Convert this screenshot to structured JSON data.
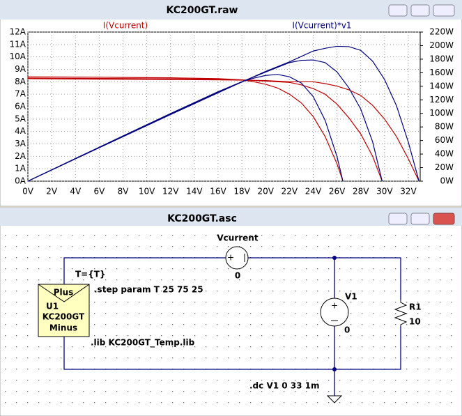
{
  "windows": {
    "plot_title": "KC200GT.raw",
    "schematic_title": "KC200GT.asc"
  },
  "chart_data": {
    "type": "line",
    "xlim": [
      0,
      33
    ],
    "xticks": [
      {
        "value": 0,
        "label": "0V"
      },
      {
        "value": 2,
        "label": "2V"
      },
      {
        "value": 4,
        "label": "4V"
      },
      {
        "value": 6,
        "label": "6V"
      },
      {
        "value": 8,
        "label": "8V"
      },
      {
        "value": 10,
        "label": "10V"
      },
      {
        "value": 12,
        "label": "12V"
      },
      {
        "value": 14,
        "label": "14V"
      },
      {
        "value": 16,
        "label": "16V"
      },
      {
        "value": 18,
        "label": "18V"
      },
      {
        "value": 20,
        "label": "20V"
      },
      {
        "value": 22,
        "label": "22V"
      },
      {
        "value": 24,
        "label": "24V"
      },
      {
        "value": 26,
        "label": "26V"
      },
      {
        "value": 28,
        "label": "28V"
      },
      {
        "value": 30,
        "label": "30V"
      },
      {
        "value": 32,
        "label": "32V"
      }
    ],
    "ylim": [
      0,
      12
    ],
    "yticks": [
      {
        "value": 0,
        "label": "0A"
      },
      {
        "value": 1,
        "label": "1A"
      },
      {
        "value": 2,
        "label": "2A"
      },
      {
        "value": 3,
        "label": "3A"
      },
      {
        "value": 4,
        "label": "4A"
      },
      {
        "value": 5,
        "label": "5A"
      },
      {
        "value": 6,
        "label": "6A"
      },
      {
        "value": 7,
        "label": "7A"
      },
      {
        "value": 8,
        "label": "8A"
      },
      {
        "value": 9,
        "label": "9A"
      },
      {
        "value": 10,
        "label": "10A"
      },
      {
        "value": 11,
        "label": "11A"
      },
      {
        "value": 12,
        "label": "12A"
      }
    ],
    "y2lim": [
      0,
      220
    ],
    "y2ticks": [
      {
        "value": 0,
        "label": "0W"
      },
      {
        "value": 20,
        "label": "20W"
      },
      {
        "value": 40,
        "label": "40W"
      },
      {
        "value": 60,
        "label": "60W"
      },
      {
        "value": 80,
        "label": "80W"
      },
      {
        "value": 100,
        "label": "100W"
      },
      {
        "value": 120,
        "label": "120W"
      },
      {
        "value": 140,
        "label": "140W"
      },
      {
        "value": 160,
        "label": "160W"
      },
      {
        "value": 180,
        "label": "180W"
      },
      {
        "value": 200,
        "label": "200W"
      },
      {
        "value": 220,
        "label": "220W"
      }
    ],
    "grid": true,
    "trace_labels": [
      {
        "text": "I(Vcurrent)",
        "color": "#c00000"
      },
      {
        "text": "I(Vcurrent)*v1",
        "color": "#00007f"
      }
    ],
    "series": [
      {
        "color": "#c00000",
        "x": [
          0,
          4,
          8,
          12,
          16,
          18,
          20,
          22,
          24,
          25,
          26,
          27,
          28,
          29,
          30,
          31,
          32,
          32.9
        ],
        "values": [
          8.25,
          8.22,
          8.2,
          8.18,
          8.15,
          8.13,
          8.1,
          8.0,
          8.0,
          7.85,
          7.65,
          7.35,
          6.9,
          6.1,
          5.0,
          3.6,
          1.8,
          0
        ]
      },
      {
        "color": "#c00000",
        "x": [
          0,
          4,
          8,
          12,
          16,
          18,
          20,
          22,
          23,
          24,
          25,
          26,
          27,
          28,
          29,
          29.8
        ],
        "values": [
          8.3,
          8.28,
          8.26,
          8.24,
          8.2,
          8.15,
          8.05,
          7.95,
          7.75,
          7.45,
          7.0,
          6.2,
          5.1,
          3.8,
          2.0,
          0
        ]
      },
      {
        "color": "#c00000",
        "x": [
          0,
          4,
          8,
          12,
          16,
          18,
          19,
          20,
          21,
          22,
          23,
          24,
          25,
          26,
          26.5
        ],
        "values": [
          8.4,
          8.38,
          8.35,
          8.32,
          8.25,
          8.15,
          8.0,
          7.8,
          7.5,
          7.0,
          6.3,
          5.2,
          3.6,
          1.4,
          0
        ]
      },
      {
        "color": "#00007f",
        "axis": "y2",
        "x": [
          0,
          4,
          8,
          12,
          16,
          18,
          20,
          22,
          24,
          25,
          26,
          27,
          28,
          29,
          30,
          31,
          32,
          32.9
        ],
        "values": [
          0,
          32.9,
          65.6,
          98.2,
          130.4,
          146.3,
          162,
          176,
          192,
          196,
          199,
          198.5,
          193,
          177,
          150,
          111.6,
          57.6,
          0
        ]
      },
      {
        "color": "#00007f",
        "axis": "y2",
        "x": [
          0,
          4,
          8,
          12,
          16,
          18,
          20,
          22,
          23,
          24,
          25,
          26,
          27,
          28,
          29,
          29.8
        ],
        "values": [
          0,
          33.1,
          66.1,
          98.9,
          131.2,
          146.7,
          161,
          174.9,
          178.3,
          178.8,
          175,
          161.2,
          137.7,
          106.4,
          58,
          0
        ]
      },
      {
        "color": "#00007f",
        "axis": "y2",
        "x": [
          0,
          4,
          8,
          12,
          16,
          18,
          19,
          20,
          21,
          22,
          23,
          24,
          25,
          26,
          26.5
        ],
        "values": [
          0,
          33.5,
          66.8,
          99.8,
          132,
          146.7,
          152,
          156,
          157.5,
          154,
          144.9,
          124.8,
          90,
          36.4,
          0
        ]
      }
    ]
  },
  "schematic": {
    "source_name": "Vcurrent",
    "source_value": "0",
    "param": "T={T}",
    "step": ".step param T 25 75 25",
    "module": {
      "pin_top": "Plus",
      "ref": "U1",
      "model": "KC200GT",
      "pin_bottom": "Minus"
    },
    "v1_name": "V1",
    "v1_value": "0",
    "r1_name": "R1",
    "r1_value": "10",
    "lib": ".lib KC200GT_Temp.lib",
    "dc": ".dc V1 0 33 1m"
  }
}
